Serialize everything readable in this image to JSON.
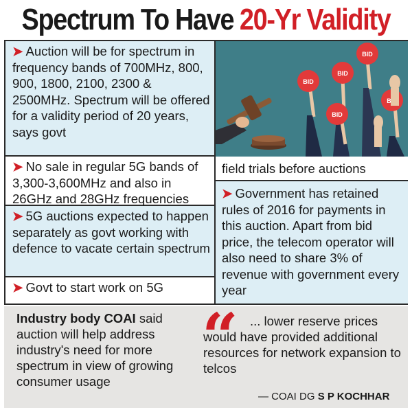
{
  "headline": {
    "main": "Spectrum To Have",
    "accent": "20-Yr Validity"
  },
  "colors": {
    "accent": "#d11f26",
    "panel_blue": "#ddeef5",
    "illustration_bg": "#3f7e88",
    "footer_bg": "#e6e5e3"
  },
  "points": {
    "auction_bands": "Auction will be for spectrum in frequency bands of 700MHz, 800, 900, 1800, 2100, 2300 & 2500MHz. Spectrum will be offered for a validity period of 20 years, says govt",
    "no_sale_5g": "No sale in regular 5G bands of 3,300-3,600MHz and also in 26GHz and 28GHz frequencies",
    "separate_5g": "5G auctions expected to happen separately as govt working with defence to vacate certain spectrum",
    "govt_work_start": "Govt to start work on 5G",
    "govt_work_cont": "field trials before auctions",
    "payment_rules": "Government has retained rules of 2016 for payments in this auction. Apart from bid price, the telecom operator will also need to share 3% of revenue with government every year"
  },
  "illustration": {
    "icon": "auction-gavel-bid-paddles-icon",
    "paddle_label": "BID"
  },
  "footer": {
    "coai_bold": "Industry body COAI",
    "coai_rest": " said auction will help address industry's need for more spectrum in view of growing consumer usage",
    "quote_mark": "“",
    "quote": "... lower reserve prices would have provided additional resources for network expansion to telcos",
    "attribution_prefix": "— COAI DG ",
    "attribution_name": "S P KOCHHAR"
  }
}
